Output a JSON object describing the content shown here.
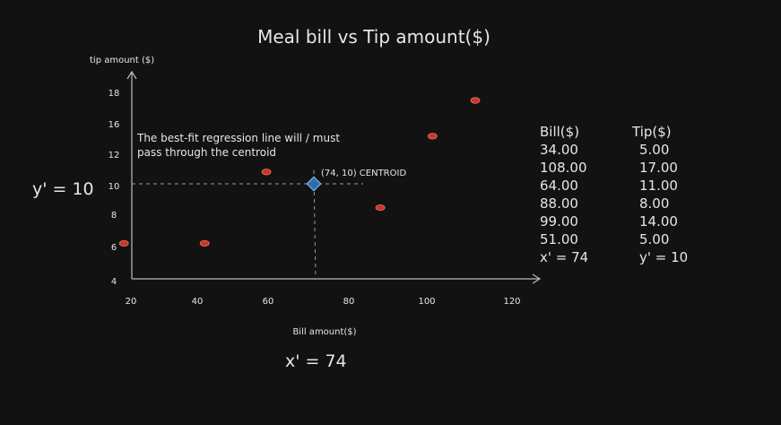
{
  "chart_data": {
    "type": "scatter",
    "title": "Meal bill vs Tip amount($)",
    "xlabel": "Bill amount($)",
    "ylabel": "tip amount ($)",
    "x_ticks": [
      20,
      40,
      60,
      80,
      100,
      120
    ],
    "y_ticks": [
      4,
      6,
      8,
      10,
      12,
      14,
      16,
      18
    ],
    "points": [
      {
        "x": 34,
        "y": 5
      },
      {
        "x": 108,
        "y": 17
      },
      {
        "x": 64,
        "y": 11
      },
      {
        "x": 88,
        "y": 8
      },
      {
        "x": 99,
        "y": 14
      },
      {
        "x": 51,
        "y": 5
      }
    ],
    "centroid": {
      "x": 74,
      "y": 10,
      "label": "(74, 10) CENTROID"
    },
    "annotation": "The best-fit regression line will / must pass through the centroid",
    "annotation_lines": [
      "The best-fit regression line will / must",
      "pass through the centroid"
    ],
    "y_mean_label": "y' = 10",
    "x_mean_label": "x' = 74",
    "table": {
      "headers": [
        "Bill($)",
        "Tip($)"
      ],
      "rows": [
        [
          "34.00",
          "5.00"
        ],
        [
          "108.00",
          "17.00"
        ],
        [
          "64.00",
          "11.00"
        ],
        [
          "88.00",
          "8.00"
        ],
        [
          "99.00",
          "14.00"
        ],
        [
          "51.00",
          "5.00"
        ]
      ],
      "footer": [
        "x' = 74",
        "y' = 10"
      ]
    },
    "colors": {
      "background": "#121212",
      "point": "#c0392b",
      "centroid": "#2f6fa6",
      "axis": "#bdbdbd",
      "dashed": "#9a9a9a"
    }
  }
}
